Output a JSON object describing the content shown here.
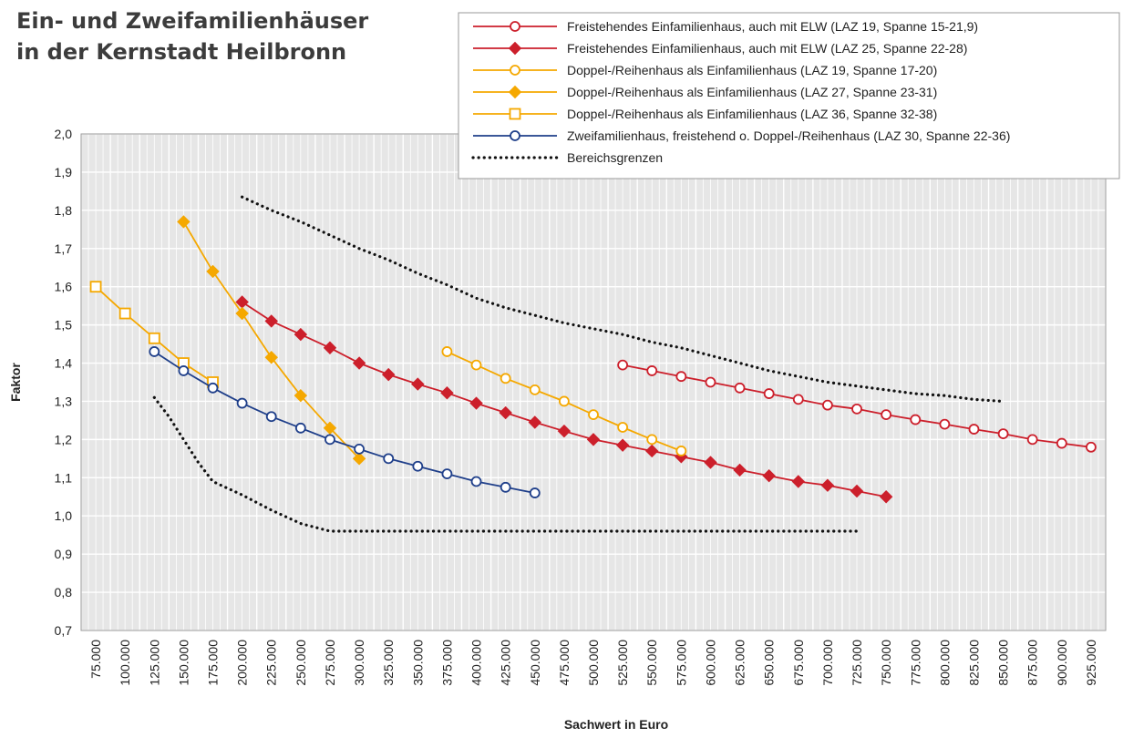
{
  "chart_data": {
    "type": "line",
    "title_lines": [
      "Ein- und Zweifamilienhäuser",
      "in der Kernstadt Heilbronn"
    ],
    "xlabel": "Sachwert in Euro",
    "ylabel": "Faktor",
    "xlim": [
      75000,
      925000
    ],
    "ylim": [
      0.7,
      2.0
    ],
    "grid": true,
    "legend_position": "top-right",
    "x_ticks": [
      "75.000",
      "100.000",
      "125.000",
      "150.000",
      "175.000",
      "200.000",
      "225.000",
      "250.000",
      "275.000",
      "300.000",
      "325.000",
      "350.000",
      "375.000",
      "400.000",
      "425.000",
      "450.000",
      "475.000",
      "500.000",
      "525.000",
      "550.000",
      "575.000",
      "600.000",
      "625.000",
      "650.000",
      "675.000",
      "700.000",
      "725.000",
      "750.000",
      "775.000",
      "800.000",
      "825.000",
      "850.000",
      "875.000",
      "900.000",
      "925.000"
    ],
    "y_ticks": [
      "0,7",
      "0,8",
      "0,9",
      "1,0",
      "1,1",
      "1,2",
      "1,3",
      "1,4",
      "1,5",
      "1,6",
      "1,7",
      "1,8",
      "1,9",
      "2,0"
    ],
    "series": [
      {
        "name": "Freistehendes Einfamilienhaus, auch mit ELW (LAZ 19, Spanne 15-21,9)",
        "color": "#cc1f2b",
        "marker": "circle-open",
        "points": [
          [
            525000,
            1.395
          ],
          [
            550000,
            1.38
          ],
          [
            575000,
            1.365
          ],
          [
            600000,
            1.35
          ],
          [
            625000,
            1.335
          ],
          [
            650000,
            1.32
          ],
          [
            675000,
            1.305
          ],
          [
            700000,
            1.29
          ],
          [
            725000,
            1.28
          ],
          [
            750000,
            1.265
          ],
          [
            775000,
            1.252
          ],
          [
            800000,
            1.24
          ],
          [
            825000,
            1.227
          ],
          [
            850000,
            1.215
          ],
          [
            875000,
            1.2
          ],
          [
            900000,
            1.19
          ],
          [
            925000,
            1.18
          ]
        ]
      },
      {
        "name": "Freistehendes Einfamilienhaus, auch mit ELW (LAZ 25, Spanne 22-28)",
        "color": "#cc1f2b",
        "marker": "diamond-filled",
        "points": [
          [
            200000,
            1.56
          ],
          [
            225000,
            1.51
          ],
          [
            250000,
            1.475
          ],
          [
            275000,
            1.44
          ],
          [
            300000,
            1.4
          ],
          [
            325000,
            1.37
          ],
          [
            350000,
            1.345
          ],
          [
            375000,
            1.322
          ],
          [
            400000,
            1.295
          ],
          [
            425000,
            1.27
          ],
          [
            450000,
            1.245
          ],
          [
            475000,
            1.222
          ],
          [
            500000,
            1.2
          ],
          [
            525000,
            1.185
          ],
          [
            550000,
            1.17
          ],
          [
            575000,
            1.155
          ],
          [
            600000,
            1.14
          ],
          [
            625000,
            1.12
          ],
          [
            650000,
            1.105
          ],
          [
            675000,
            1.09
          ],
          [
            700000,
            1.08
          ],
          [
            725000,
            1.065
          ],
          [
            750000,
            1.05
          ]
        ]
      },
      {
        "name": "Doppel-/Reihenhaus als Einfamilienhaus (LAZ 19, Spanne 17-20)",
        "color": "#f5a800",
        "marker": "circle-open",
        "points": [
          [
            375000,
            1.43
          ],
          [
            400000,
            1.395
          ],
          [
            425000,
            1.36
          ],
          [
            450000,
            1.33
          ],
          [
            475000,
            1.3
          ],
          [
            500000,
            1.265
          ],
          [
            525000,
            1.232
          ],
          [
            550000,
            1.2
          ],
          [
            575000,
            1.17
          ]
        ]
      },
      {
        "name": "Doppel-/Reihenhaus als Einfamilienhaus (LAZ 27, Spanne 23-31)",
        "color": "#f5a800",
        "marker": "diamond-filled",
        "points": [
          [
            150000,
            1.77
          ],
          [
            175000,
            1.64
          ],
          [
            200000,
            1.53
          ],
          [
            225000,
            1.415
          ],
          [
            250000,
            1.315
          ],
          [
            275000,
            1.23
          ],
          [
            300000,
            1.15
          ]
        ]
      },
      {
        "name": "Doppel-/Reihenhaus als Einfamilienhaus (LAZ 36, Spanne 32-38)",
        "color": "#f5a800",
        "marker": "square-open",
        "points": [
          [
            75000,
            1.6
          ],
          [
            100000,
            1.53
          ],
          [
            125000,
            1.465
          ],
          [
            150000,
            1.4
          ],
          [
            175000,
            1.35
          ]
        ]
      },
      {
        "name": "Zweifamilienhaus, freistehend o. Doppel-/Reihenhaus (LAZ 30, Spanne 22-36)",
        "color": "#1f3f8a",
        "marker": "circle-open",
        "points": [
          [
            125000,
            1.43
          ],
          [
            150000,
            1.38
          ],
          [
            175000,
            1.335
          ],
          [
            200000,
            1.295
          ],
          [
            225000,
            1.26
          ],
          [
            250000,
            1.23
          ],
          [
            275000,
            1.2
          ],
          [
            300000,
            1.175
          ],
          [
            325000,
            1.15
          ],
          [
            350000,
            1.13
          ],
          [
            375000,
            1.11
          ],
          [
            400000,
            1.09
          ],
          [
            425000,
            1.075
          ],
          [
            450000,
            1.06
          ]
        ]
      },
      {
        "name": "Bereichsgrenzen",
        "color": "#111111",
        "marker": "none",
        "dashed": true,
        "paths": [
          [
            [
              200000,
              1.835
            ],
            [
              225000,
              1.8
            ],
            [
              250000,
              1.77
            ],
            [
              275000,
              1.735
            ],
            [
              300000,
              1.7
            ],
            [
              325000,
              1.67
            ],
            [
              350000,
              1.635
            ],
            [
              375000,
              1.605
            ],
            [
              400000,
              1.57
            ],
            [
              425000,
              1.545
            ],
            [
              450000,
              1.525
            ],
            [
              475000,
              1.505
            ],
            [
              500000,
              1.49
            ],
            [
              525000,
              1.475
            ],
            [
              550000,
              1.455
            ],
            [
              575000,
              1.44
            ],
            [
              600000,
              1.42
            ],
            [
              625000,
              1.4
            ],
            [
              650000,
              1.38
            ],
            [
              675000,
              1.365
            ],
            [
              700000,
              1.35
            ],
            [
              725000,
              1.34
            ],
            [
              750000,
              1.33
            ],
            [
              775000,
              1.32
            ],
            [
              800000,
              1.315
            ],
            [
              825000,
              1.305
            ],
            [
              850000,
              1.3
            ]
          ],
          [
            [
              125000,
              1.31
            ],
            [
              137500,
              1.26
            ],
            [
              150000,
              1.2
            ],
            [
              162500,
              1.14
            ],
            [
              175000,
              1.09
            ],
            [
              200000,
              1.055
            ],
            [
              225000,
              1.015
            ],
            [
              250000,
              0.98
            ],
            [
              275000,
              0.96
            ],
            [
              300000,
              0.96
            ],
            [
              725000,
              0.96
            ]
          ]
        ]
      }
    ]
  }
}
